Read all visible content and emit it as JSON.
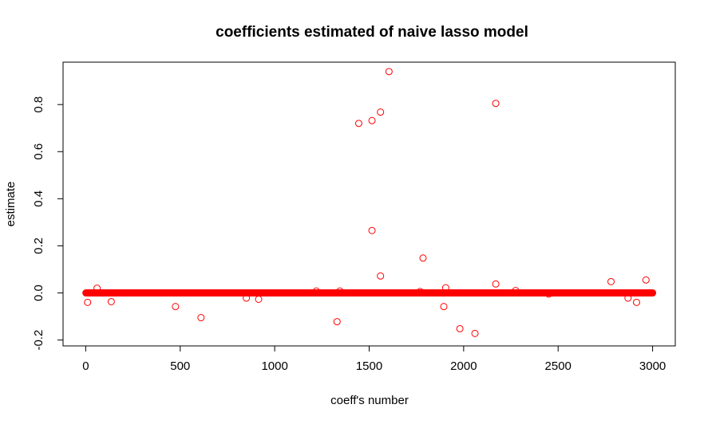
{
  "chart_data": {
    "type": "scatter",
    "title": "coefficients estimated of naive lasso model",
    "xlabel": "coeff's number",
    "ylabel": "estimate",
    "xlim": [
      -120,
      3120
    ],
    "ylim": [
      -0.225,
      0.98
    ],
    "x_ticks": [
      0,
      500,
      1000,
      1500,
      2000,
      2500,
      3000
    ],
    "x_tick_labels": [
      "0",
      "500",
      "1000",
      "1500",
      "2000",
      "2500",
      "3000"
    ],
    "y_ticks": [
      -0.2,
      0.0,
      0.2,
      0.4,
      0.6,
      0.8
    ],
    "y_tick_labels": [
      "-0.2",
      "0.0",
      "0.2",
      "0.4",
      "0.6",
      "0.8"
    ],
    "grid": false,
    "marker": "open-circle",
    "color": "#ff0000",
    "zero_band": {
      "x_start": 1,
      "x_end": 3000,
      "y": 0.0
    },
    "points": [
      {
        "x": 10,
        "y": -0.04
      },
      {
        "x": 60,
        "y": 0.02
      },
      {
        "x": 135,
        "y": -0.037
      },
      {
        "x": 475,
        "y": -0.058
      },
      {
        "x": 610,
        "y": -0.105
      },
      {
        "x": 850,
        "y": -0.022
      },
      {
        "x": 915,
        "y": -0.027
      },
      {
        "x": 1220,
        "y": 0.008
      },
      {
        "x": 1330,
        "y": -0.122
      },
      {
        "x": 1345,
        "y": 0.008
      },
      {
        "x": 1445,
        "y": 0.72
      },
      {
        "x": 1515,
        "y": 0.732
      },
      {
        "x": 1515,
        "y": 0.265
      },
      {
        "x": 1560,
        "y": 0.768
      },
      {
        "x": 1560,
        "y": 0.072
      },
      {
        "x": 1605,
        "y": 0.94
      },
      {
        "x": 1770,
        "y": 0.006
      },
      {
        "x": 1785,
        "y": 0.148
      },
      {
        "x": 1895,
        "y": -0.058
      },
      {
        "x": 1905,
        "y": 0.022
      },
      {
        "x": 1980,
        "y": -0.152
      },
      {
        "x": 2060,
        "y": -0.172
      },
      {
        "x": 2170,
        "y": 0.038
      },
      {
        "x": 2170,
        "y": 0.805
      },
      {
        "x": 2275,
        "y": 0.01
      },
      {
        "x": 2450,
        "y": -0.005
      },
      {
        "x": 2780,
        "y": 0.048
      },
      {
        "x": 2870,
        "y": -0.022
      },
      {
        "x": 2915,
        "y": -0.04
      },
      {
        "x": 2965,
        "y": 0.055
      }
    ]
  }
}
